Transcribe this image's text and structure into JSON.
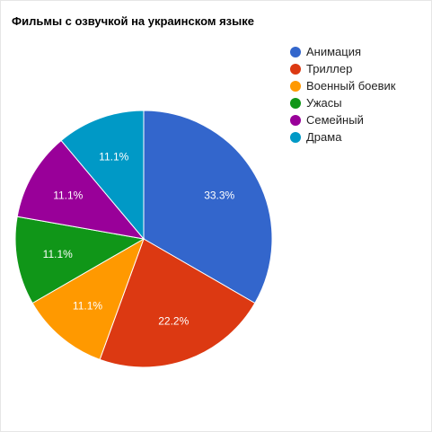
{
  "chart_data": {
    "type": "pie",
    "title": "Фильмы с озвучкой на украинском языке",
    "legend_position": "right",
    "slices": [
      {
        "label": "Анимация",
        "value": 33.3,
        "display": "33.3%",
        "color": "#3366cc"
      },
      {
        "label": "Триллер",
        "value": 22.2,
        "display": "22.2%",
        "color": "#dc3912"
      },
      {
        "label": "Военный боевик",
        "value": 11.1,
        "display": "11.1%",
        "color": "#ff9900"
      },
      {
        "label": "Ужасы",
        "value": 11.1,
        "display": "11.1%",
        "color": "#109618"
      },
      {
        "label": "Семейный",
        "value": 11.1,
        "display": "11.1%",
        "color": "#990099"
      },
      {
        "label": "Драма",
        "value": 11.1,
        "display": "11.1%",
        "color": "#0099c6"
      }
    ]
  }
}
